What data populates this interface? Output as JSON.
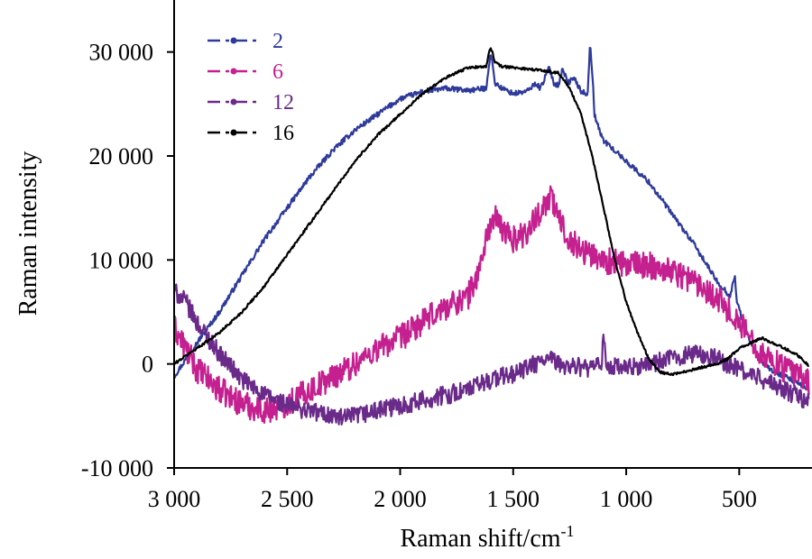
{
  "chart_data": {
    "type": "line",
    "title": "",
    "xlabel": "Raman shift/cm",
    "xlabel_sup": "-1",
    "ylabel": "Raman intensity",
    "xlim": [
      3000,
      190
    ],
    "ylim": [
      -10000,
      35000
    ],
    "x_reversed": true,
    "grid": false,
    "legend_position": "top-left",
    "x_ticks": [
      {
        "value": 3000,
        "label": "3 000"
      },
      {
        "value": 2500,
        "label": "2 500"
      },
      {
        "value": 2000,
        "label": "2 000"
      },
      {
        "value": 1500,
        "label": "1 500"
      },
      {
        "value": 1000,
        "label": "1 000"
      },
      {
        "value": 500,
        "label": "500"
      }
    ],
    "y_ticks": [
      {
        "value": 30000,
        "label": "30 000"
      },
      {
        "value": 20000,
        "label": "20 000"
      },
      {
        "value": 10000,
        "label": "10 000"
      },
      {
        "value": 0,
        "label": "0"
      },
      {
        "value": -10000,
        "label": "-10 000"
      }
    ],
    "series": [
      {
        "name": "2",
        "color": "#2e3a9a",
        "noise": 250,
        "x": [
          3000,
          2900,
          2800,
          2700,
          2600,
          2500,
          2400,
          2300,
          2200,
          2100,
          2000,
          1900,
          1800,
          1700,
          1620,
          1600,
          1580,
          1550,
          1500,
          1440,
          1400,
          1380,
          1340,
          1320,
          1300,
          1280,
          1260,
          1230,
          1200,
          1170,
          1160,
          1150,
          1140,
          1120,
          1100,
          1000,
          900,
          800,
          700,
          600,
          540,
          520,
          510,
          490,
          450,
          400,
          350,
          300,
          250,
          200,
          190
        ],
        "y": [
          -1200,
          2000,
          5000,
          8500,
          12000,
          15000,
          18000,
          20500,
          22500,
          24000,
          25500,
          26200,
          26500,
          26300,
          26500,
          30000,
          27000,
          26500,
          26000,
          26200,
          27000,
          26500,
          28500,
          27000,
          26800,
          28500,
          27000,
          27500,
          26200,
          26000,
          31000,
          28000,
          24000,
          22500,
          21500,
          19500,
          17500,
          14500,
          11500,
          8000,
          6500,
          8500,
          6000,
          4500,
          2000,
          200,
          -700,
          -1200,
          -1800,
          -2400,
          -2700
        ]
      },
      {
        "name": "6",
        "color": "#c4208f",
        "noise": 1300,
        "x": [
          3000,
          2950,
          2900,
          2800,
          2700,
          2600,
          2500,
          2400,
          2300,
          2200,
          2100,
          2000,
          1900,
          1800,
          1700,
          1650,
          1620,
          1600,
          1580,
          1550,
          1500,
          1450,
          1400,
          1360,
          1330,
          1300,
          1250,
          1200,
          1100,
          1000,
          900,
          800,
          700,
          600,
          500,
          400,
          300,
          250,
          200,
          190
        ],
        "y": [
          3500,
          1500,
          -500,
          -2500,
          -3800,
          -4500,
          -3800,
          -2500,
          -1200,
          0,
          1500,
          2500,
          4000,
          5500,
          6500,
          9000,
          12000,
          13500,
          14000,
          13000,
          12000,
          12500,
          14000,
          15500,
          16000,
          14000,
          12000,
          11000,
          10000,
          9500,
          9500,
          9000,
          8000,
          6500,
          4000,
          1000,
          -500,
          -1000,
          -1500,
          -1800
        ]
      },
      {
        "name": "12",
        "color": "#6a2a8a",
        "noise": 900,
        "x": [
          3000,
          2950,
          2900,
          2800,
          2700,
          2600,
          2500,
          2400,
          2300,
          2250,
          2200,
          2100,
          2000,
          1900,
          1800,
          1700,
          1600,
          1550,
          1500,
          1450,
          1400,
          1350,
          1300,
          1250,
          1200,
          1150,
          1110,
          1100,
          1090,
          1050,
          1000,
          900,
          800,
          750,
          700,
          650,
          600,
          500,
          400,
          300,
          250,
          200,
          190
        ],
        "y": [
          7000,
          6000,
          4000,
          1000,
          -1500,
          -3000,
          -4000,
          -4500,
          -5000,
          -5300,
          -5000,
          -4500,
          -4000,
          -3500,
          -3000,
          -2500,
          -1500,
          -1200,
          -1000,
          -500,
          0,
          500,
          0,
          -200,
          -300,
          -500,
          0,
          2500,
          0,
          -300,
          -500,
          0,
          500,
          800,
          1000,
          800,
          500,
          -500,
          -1500,
          -2500,
          -3000,
          -3500,
          -4000
        ]
      },
      {
        "name": "16",
        "color": "#000000",
        "noise": 120,
        "x": [
          3000,
          2900,
          2800,
          2700,
          2600,
          2500,
          2400,
          2300,
          2200,
          2100,
          2000,
          1900,
          1800,
          1700,
          1620,
          1600,
          1580,
          1550,
          1500,
          1400,
          1300,
          1250,
          1200,
          1150,
          1100,
          1050,
          1000,
          950,
          900,
          850,
          800,
          750,
          700,
          600,
          550,
          500,
          400,
          350,
          300,
          250,
          200,
          190
        ],
        "y": [
          0,
          1500,
          3000,
          5000,
          7500,
          10500,
          13500,
          16500,
          19500,
          22000,
          24000,
          26000,
          27500,
          28500,
          28600,
          30500,
          29000,
          28600,
          28500,
          28300,
          28000,
          26500,
          24000,
          20000,
          15000,
          10000,
          6000,
          3000,
          500,
          -800,
          -1000,
          -800,
          -500,
          0,
          500,
          1500,
          2500,
          2000,
          1500,
          1000,
          0,
          -200
        ]
      }
    ]
  }
}
